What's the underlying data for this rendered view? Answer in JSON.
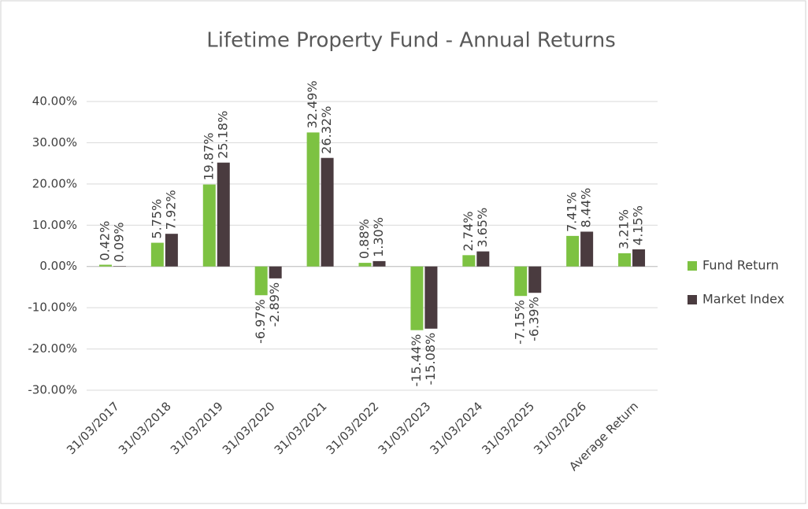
{
  "chart_data": {
    "type": "bar",
    "title": "Lifetime Property Fund - Annual Returns",
    "categories": [
      "31/03/2017",
      "31/03/2018",
      "31/03/2019",
      "31/03/2020",
      "31/03/2021",
      "31/03/2022",
      "31/03/2023",
      "31/03/2024",
      "31/03/2025",
      "31/03/2026",
      "Average Return"
    ],
    "series": [
      {
        "name": "Fund Return",
        "color": "#7dc242",
        "values": [
          0.42,
          5.75,
          19.87,
          -6.97,
          32.49,
          0.88,
          -15.44,
          2.74,
          -7.15,
          7.41,
          3.21
        ],
        "value_labels": [
          "0.42%",
          "5.75%",
          "19.87%",
          "-6.97%",
          "32.49%",
          "0.88%",
          "-15.44%",
          "2.74%",
          "-7.15%",
          "7.41%",
          "3.21%"
        ]
      },
      {
        "name": "Market Index",
        "color": "#4a3b3f",
        "values": [
          0.09,
          7.92,
          25.18,
          -2.89,
          26.32,
          1.3,
          -15.08,
          3.65,
          -6.39,
          8.44,
          4.15
        ],
        "value_labels": [
          "0.09%",
          "7.92%",
          "25.18%",
          "-2.89%",
          "26.32%",
          "1.30%",
          "-15.08%",
          "3.65%",
          "-6.39%",
          "8.44%",
          "4.15%"
        ]
      }
    ],
    "ylim": [
      -30,
      40
    ],
    "yticks": [
      {
        "value": -30,
        "label": "-30.00%"
      },
      {
        "value": -20,
        "label": "-20.00%"
      },
      {
        "value": -10,
        "label": "-10.00%"
      },
      {
        "value": 0,
        "label": "0.00%"
      },
      {
        "value": 10,
        "label": "10.00%"
      },
      {
        "value": 20,
        "label": "20.00%"
      },
      {
        "value": 30,
        "label": "30.00%"
      },
      {
        "value": 40,
        "label": "40.00%"
      }
    ],
    "grid": true,
    "legend": "right"
  }
}
